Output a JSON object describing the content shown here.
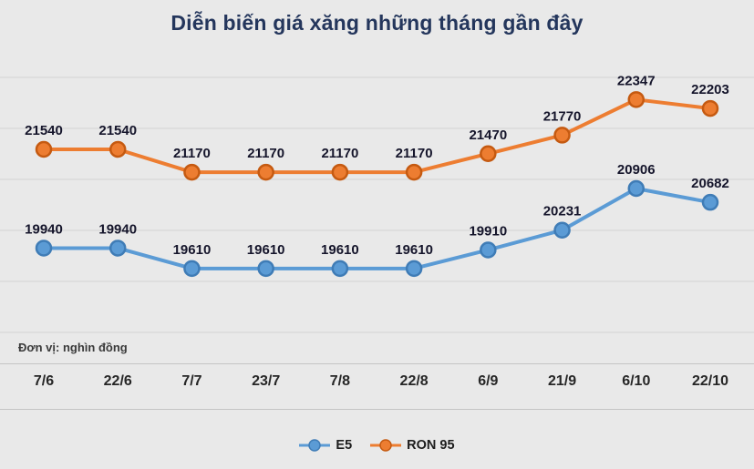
{
  "title": "Diễn biến giá xăng những tháng gần đây",
  "unit_note": "Đơn vị: nghìn đồng",
  "colors": {
    "background": "#e9e9e9",
    "title": "#24365c",
    "gridline": "#d2d2d2",
    "data_label": "#15152b"
  },
  "chart_data": {
    "type": "line",
    "title": "Diễn biến giá xăng những tháng gần đây",
    "xlabel": "",
    "ylabel": "nghìn đồng",
    "categories": [
      "7/6",
      "22/6",
      "7/7",
      "23/7",
      "7/8",
      "22/8",
      "6/9",
      "21/9",
      "6/10",
      "22/10"
    ],
    "series": [
      {
        "name": "E5",
        "color": "#5b9bd5",
        "marker_stroke": "#3f7cb6",
        "values": [
          19940,
          19940,
          19610,
          19610,
          19610,
          19610,
          19910,
          20231,
          20906,
          20682
        ]
      },
      {
        "name": "RON 95",
        "color": "#ed7d31",
        "marker_stroke": "#c55a11",
        "values": [
          21540,
          21540,
          21170,
          21170,
          21170,
          21170,
          21470,
          21770,
          22347,
          22203
        ]
      }
    ],
    "ylim": [
      19150,
      22750
    ],
    "grid": true,
    "legend_position": "bottom",
    "data_labels": true
  }
}
